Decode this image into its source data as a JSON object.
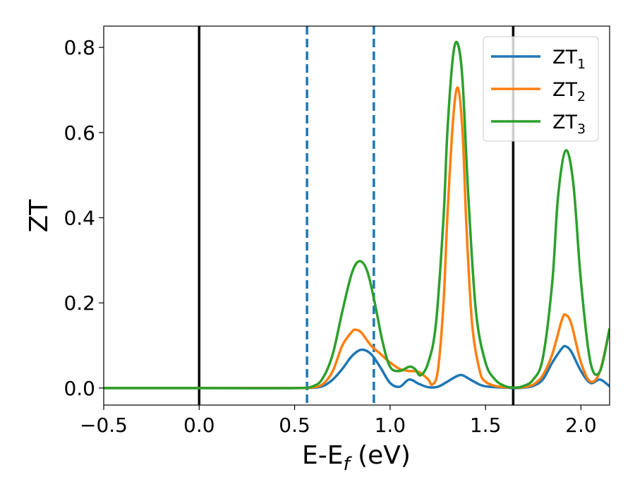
{
  "chart_data": {
    "type": "line",
    "xlabel": "E-E",
    "xlabel_subscript": "f",
    "xlabel_unit": " (eV)",
    "ylabel": "ZT",
    "xlim": [
      -0.5,
      2.15
    ],
    "ylim": [
      -0.04,
      0.85
    ],
    "xticks": [
      -0.5,
      0.0,
      0.5,
      1.0,
      1.5,
      2.0
    ],
    "xtick_labels": [
      "−0.5",
      "0.0",
      "0.5",
      "1.0",
      "1.5",
      "2.0"
    ],
    "yticks": [
      0.0,
      0.2,
      0.4,
      0.6,
      0.8
    ],
    "ytick_labels": [
      "0.0",
      "0.2",
      "0.4",
      "0.6",
      "0.8"
    ],
    "grid": false,
    "legend_position": "top-right",
    "vertical_lines": [
      {
        "x": 0.0,
        "style": "solid",
        "color": "#000000"
      },
      {
        "x": 1.645,
        "style": "solid",
        "color": "#000000"
      },
      {
        "x": 0.565,
        "style": "dashed",
        "color": "#1f77b4"
      },
      {
        "x": 0.915,
        "style": "dashed",
        "color": "#1f77b4"
      }
    ],
    "series": [
      {
        "name": "ZT",
        "name_subscript": "1",
        "color": "#1f77b4",
        "x": [
          -0.5,
          0.0,
          0.5,
          0.6,
          0.65,
          0.7,
          0.75,
          0.8,
          0.85,
          0.9,
          0.95,
          1.0,
          1.05,
          1.1,
          1.15,
          1.2,
          1.25,
          1.3,
          1.35,
          1.38,
          1.42,
          1.47,
          1.5,
          1.55,
          1.6,
          1.65,
          1.7,
          1.75,
          1.8,
          1.85,
          1.9,
          1.92,
          1.95,
          2.0,
          2.05,
          2.1,
          2.15
        ],
        "y": [
          0.0,
          0.0,
          0.0,
          0.001,
          0.005,
          0.02,
          0.045,
          0.075,
          0.09,
          0.08,
          0.048,
          0.012,
          0.003,
          0.02,
          0.01,
          0.002,
          0.003,
          0.015,
          0.028,
          0.03,
          0.02,
          0.008,
          0.004,
          0.002,
          0.001,
          0.0,
          0.001,
          0.005,
          0.02,
          0.06,
          0.093,
          0.098,
          0.085,
          0.04,
          0.012,
          0.02,
          0.004
        ]
      },
      {
        "name": "ZT",
        "name_subscript": "2",
        "color": "#ff7f0e",
        "x": [
          -0.5,
          0.0,
          0.5,
          0.6,
          0.65,
          0.7,
          0.75,
          0.8,
          0.82,
          0.85,
          0.9,
          0.95,
          1.0,
          1.05,
          1.1,
          1.15,
          1.2,
          1.22,
          1.25,
          1.28,
          1.3,
          1.33,
          1.355,
          1.38,
          1.4,
          1.43,
          1.47,
          1.5,
          1.55,
          1.6,
          1.65,
          1.7,
          1.75,
          1.8,
          1.85,
          1.9,
          1.92,
          1.95,
          2.0,
          2.05,
          2.1,
          2.15
        ],
        "y": [
          0.0,
          0.0,
          0.0,
          0.002,
          0.01,
          0.04,
          0.1,
          0.132,
          0.137,
          0.13,
          0.1,
          0.08,
          0.06,
          0.045,
          0.04,
          0.038,
          0.02,
          0.008,
          0.04,
          0.2,
          0.4,
          0.63,
          0.705,
          0.6,
          0.38,
          0.15,
          0.04,
          0.015,
          0.005,
          0.002,
          0.001,
          0.002,
          0.008,
          0.03,
          0.08,
          0.16,
          0.172,
          0.15,
          0.06,
          0.015,
          0.04,
          0.14
        ]
      },
      {
        "name": "ZT",
        "name_subscript": "3",
        "color": "#2ca02c",
        "x": [
          -0.5,
          0.0,
          0.5,
          0.6,
          0.65,
          0.7,
          0.75,
          0.8,
          0.84,
          0.88,
          0.92,
          0.96,
          1.0,
          1.05,
          1.1,
          1.13,
          1.16,
          1.2,
          1.24,
          1.28,
          1.3,
          1.33,
          1.355,
          1.38,
          1.41,
          1.45,
          1.5,
          1.55,
          1.6,
          1.65,
          1.7,
          1.75,
          1.8,
          1.85,
          1.88,
          1.92,
          1.96,
          2.0,
          2.05,
          2.1,
          2.15
        ],
        "y": [
          0.0,
          0.0,
          0.0,
          0.005,
          0.025,
          0.08,
          0.18,
          0.27,
          0.298,
          0.275,
          0.2,
          0.11,
          0.05,
          0.04,
          0.05,
          0.045,
          0.03,
          0.06,
          0.15,
          0.4,
          0.6,
          0.78,
          0.808,
          0.72,
          0.45,
          0.18,
          0.06,
          0.02,
          0.005,
          0.001,
          0.005,
          0.02,
          0.07,
          0.25,
          0.45,
          0.558,
          0.48,
          0.25,
          0.06,
          0.04,
          0.14
        ]
      }
    ]
  }
}
